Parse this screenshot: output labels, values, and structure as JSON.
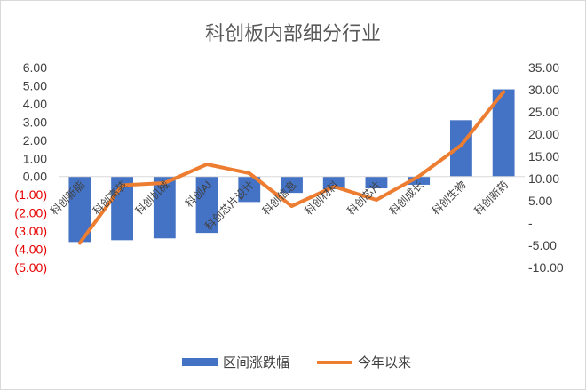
{
  "chart_data": {
    "type": "bar",
    "title": "科创板内部细分行业",
    "categories": [
      "科创新能",
      "科创高装",
      "科创机械",
      "科创AI",
      "科创芯片设计",
      "科创信息",
      "科创材料",
      "科创芯片",
      "科创成长",
      "科创生物",
      "科创新药"
    ],
    "left_axis": {
      "ylim": [
        -5,
        6
      ],
      "ticks": [
        6,
        5,
        4,
        3,
        2,
        1,
        0,
        -1,
        -2,
        -3,
        -4,
        -5
      ],
      "tick_labels": [
        "6.00",
        "5.00",
        "4.00",
        "3.00",
        "2.00",
        "1.00",
        "0.00",
        "(1.00)",
        "(2.00)",
        "(3.00)",
        "(4.00)",
        "(5.00)"
      ],
      "negative_color": "#e60000"
    },
    "right_axis": {
      "ylim": [
        -10,
        35
      ],
      "ticks": [
        35,
        30,
        25,
        20,
        15,
        10,
        5,
        0,
        -5,
        -10
      ],
      "tick_labels": [
        "35.00",
        "30.00",
        "25.00",
        "20.00",
        "15.00",
        "10.00",
        "5.00",
        "-",
        "-5.00",
        "-10.00"
      ]
    },
    "series": [
      {
        "name": "区间涨跌幅",
        "type": "bar",
        "axis": "left",
        "color": "#4472c4",
        "values": [
          -3.6,
          -3.5,
          -3.4,
          -3.1,
          -1.4,
          -0.9,
          -0.7,
          -0.65,
          -0.45,
          3.1,
          4.8
        ]
      },
      {
        "name": "今年以来",
        "type": "line",
        "axis": "right",
        "color": "#ed7d31",
        "values": [
          -4.5,
          8.5,
          9.0,
          13.2,
          11.2,
          3.8,
          8.2,
          5.2,
          10.5,
          17.5,
          29.5
        ]
      }
    ],
    "grid": false,
    "legend": "bottom"
  }
}
